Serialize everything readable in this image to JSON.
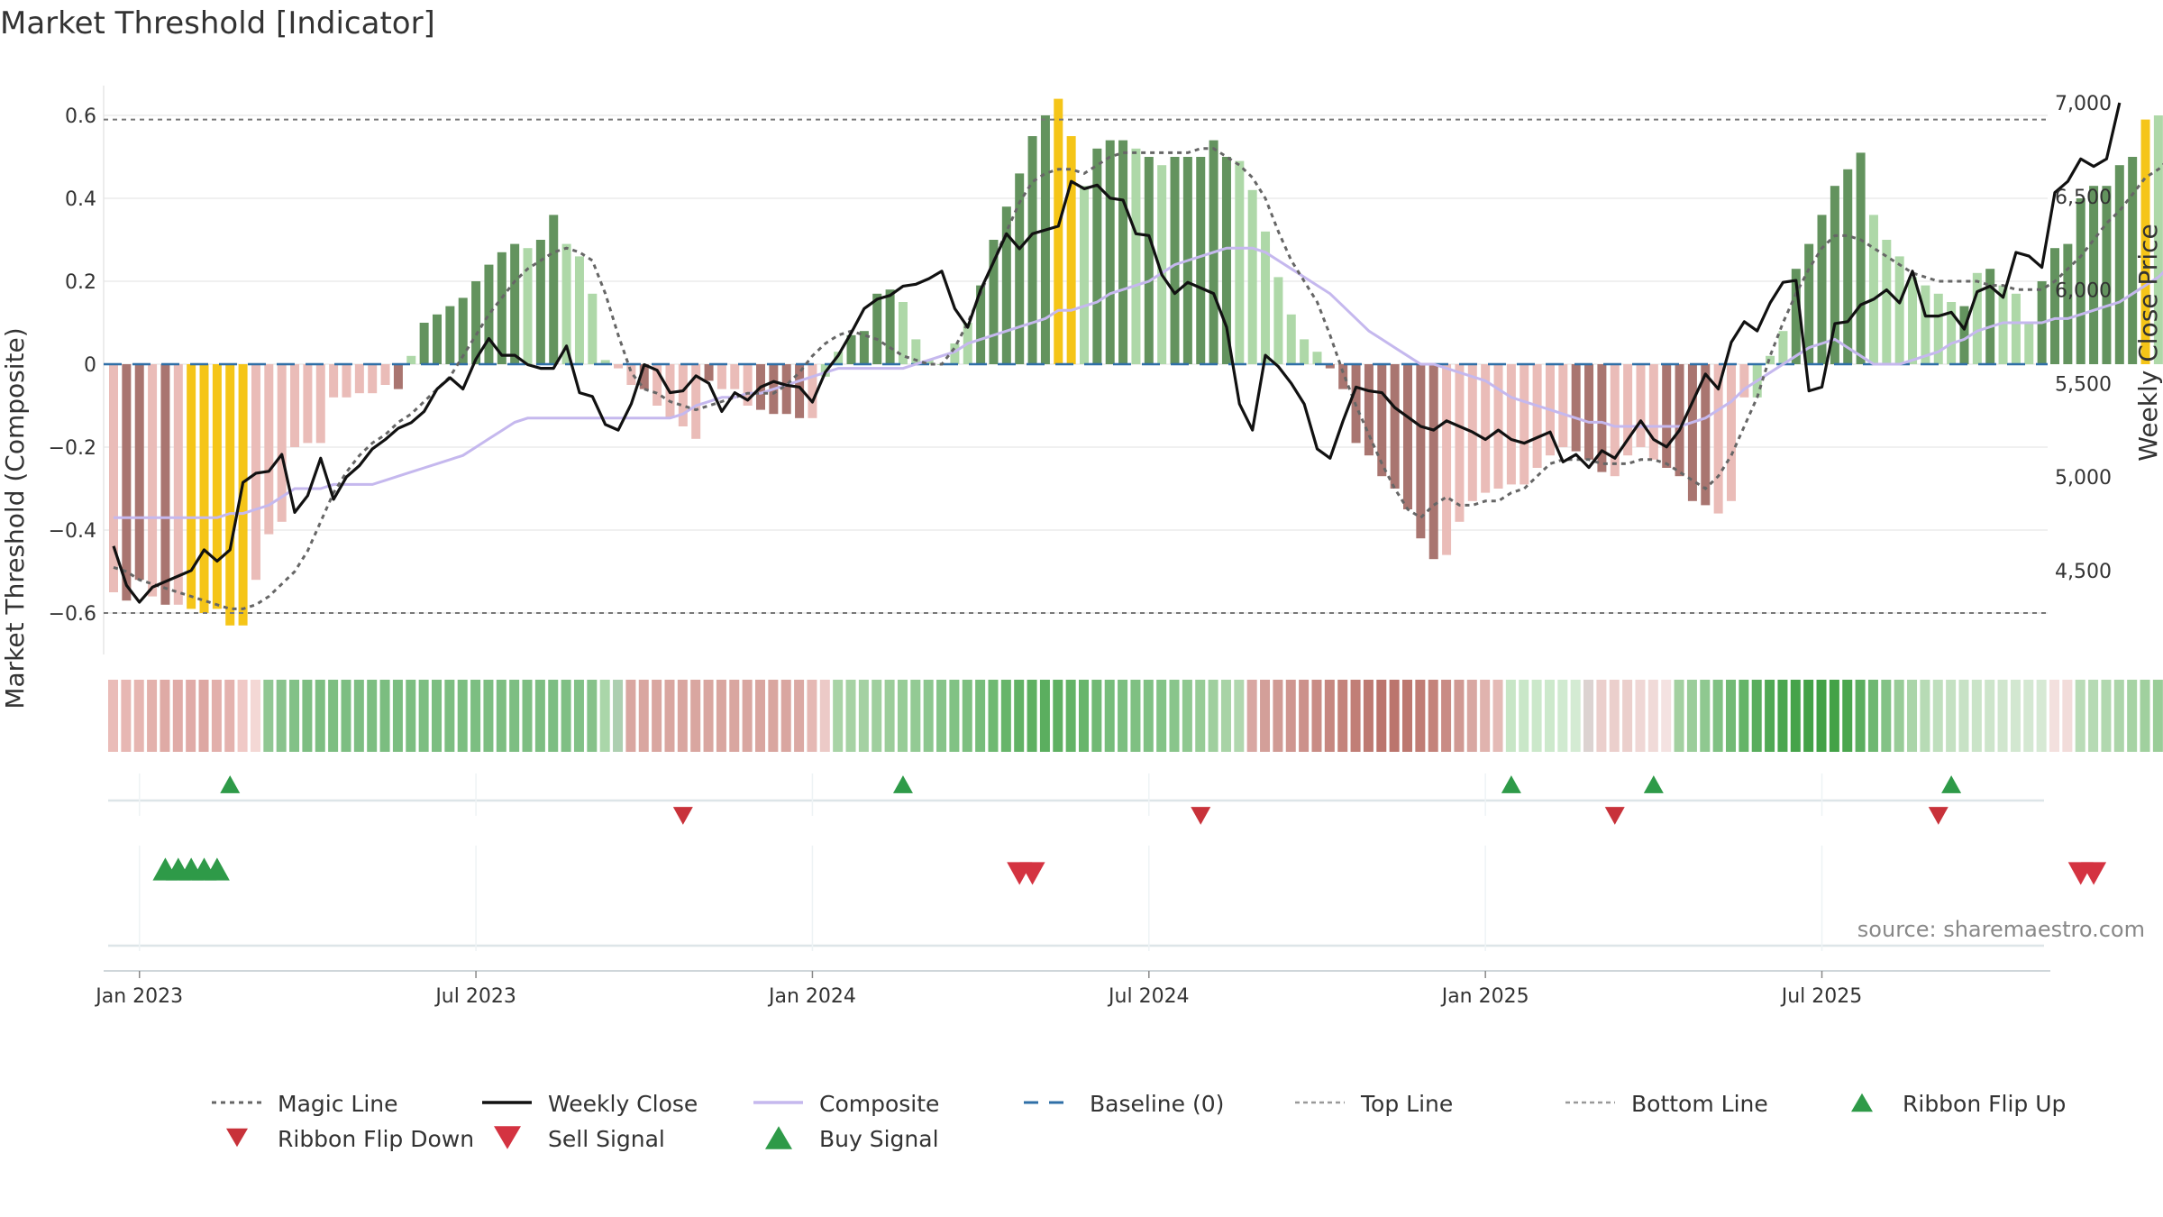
{
  "chart_data": {
    "type": "bar",
    "title": "Market Threshold [Indicator]",
    "ylabel": "Market Threshold (Composite)",
    "y2label": "Weekly Close Price",
    "ylim": [
      -0.7,
      0.7
    ],
    "y2lim": [
      4000,
      7100
    ],
    "yticks": [
      -0.6,
      -0.4,
      -0.2,
      0,
      0.2,
      0.4,
      0.6
    ],
    "yticklabels": [
      "−0.6",
      "−0.4",
      "−0.2",
      "0",
      "0.2",
      "0.4",
      "0.6"
    ],
    "y2ticks": [
      4500,
      5000,
      5500,
      6000,
      6500,
      7000
    ],
    "y2ticklabels": [
      "4,500",
      "5,000",
      "5,500",
      "6,000",
      "6,500",
      "7,000"
    ],
    "xticks": [
      {
        "week": 2,
        "label": "Jan 2023"
      },
      {
        "week": 28,
        "label": "Jul 2023"
      },
      {
        "week": 54,
        "label": "Jan 2024"
      },
      {
        "week": 80,
        "label": "Jul 2024"
      },
      {
        "week": 106,
        "label": "Jan 2025"
      },
      {
        "week": 132,
        "label": "Jul 2025"
      }
    ],
    "top_line": 0.59,
    "bottom_line": -0.6,
    "baseline": 0,
    "composite": [
      -0.55,
      -0.57,
      -0.52,
      -0.56,
      -0.58,
      -0.58,
      -0.59,
      -0.6,
      -0.59,
      -0.63,
      -0.63,
      -0.52,
      -0.41,
      -0.38,
      -0.2,
      -0.19,
      -0.19,
      -0.08,
      -0.08,
      -0.07,
      -0.07,
      -0.05,
      -0.06,
      0.02,
      0.1,
      0.12,
      0.14,
      0.16,
      0.2,
      0.24,
      0.27,
      0.29,
      0.28,
      0.3,
      0.36,
      0.29,
      0.26,
      0.17,
      0.01,
      -0.01,
      -0.05,
      -0.06,
      -0.1,
      -0.13,
      -0.15,
      -0.18,
      -0.04,
      -0.06,
      -0.06,
      -0.1,
      -0.11,
      -0.12,
      -0.12,
      -0.13,
      -0.13,
      -0.03,
      0.03,
      0.07,
      0.08,
      0.17,
      0.18,
      0.15,
      0.06,
      0.01,
      0.0,
      0.05,
      0.1,
      0.19,
      0.3,
      0.38,
      0.46,
      0.55,
      0.6,
      0.64,
      0.55,
      0.43,
      0.52,
      0.54,
      0.54,
      0.52,
      0.5,
      0.48,
      0.5,
      0.5,
      0.5,
      0.54,
      0.5,
      0.49,
      0.42,
      0.32,
      0.21,
      0.12,
      0.06,
      0.03,
      -0.01,
      -0.06,
      -0.19,
      -0.22,
      -0.27,
      -0.3,
      -0.35,
      -0.42,
      -0.47,
      -0.46,
      -0.38,
      -0.33,
      -0.31,
      -0.3,
      -0.29,
      -0.29,
      -0.25,
      -0.22,
      -0.2,
      -0.21,
      -0.23,
      -0.26,
      -0.27,
      -0.22,
      -0.2,
      -0.23,
      -0.25,
      -0.27,
      -0.33,
      -0.34,
      -0.36,
      -0.33,
      -0.08,
      -0.08,
      0.02,
      0.08,
      0.23,
      0.29,
      0.36,
      0.43,
      0.47,
      0.51,
      0.36,
      0.3,
      0.26,
      0.21,
      0.19,
      0.17,
      0.15,
      0.14,
      0.22,
      0.23,
      0.19,
      0.17,
      0.1,
      0.2,
      0.28,
      0.29,
      0.4,
      0.43,
      0.43,
      0.48,
      0.5,
      0.59,
      0.6,
      0.63,
      0.64
    ],
    "bar_colors": [
      "#eabcb8",
      "#a97570",
      "#a97570",
      "#eabcb8",
      "#a97570",
      "#eabcb8",
      "#f5c518",
      "#f5c518",
      "#f5c518",
      "#f5c518",
      "#f5c518",
      "#eabcb8",
      "#eabcb8",
      "#eabcb8",
      "#eabcb8",
      "#eabcb8",
      "#eabcb8",
      "#eabcb8",
      "#eabcb8",
      "#eabcb8",
      "#eabcb8",
      "#eabcb8",
      "#a97570",
      "#aed8a8",
      "#63935e",
      "#63935e",
      "#63935e",
      "#63935e",
      "#63935e",
      "#63935e",
      "#63935e",
      "#63935e",
      "#aed8a8",
      "#63935e",
      "#63935e",
      "#aed8a8",
      "#aed8a8",
      "#aed8a8",
      "#aed8a8",
      "#eabcb8",
      "#eabcb8",
      "#a97570",
      "#eabcb8",
      "#eabcb8",
      "#eabcb8",
      "#eabcb8",
      "#a97570",
      "#eabcb8",
      "#eabcb8",
      "#eabcb8",
      "#a97570",
      "#a97570",
      "#a97570",
      "#a97570",
      "#eabcb8",
      "#aed8a8",
      "#aed8a8",
      "#63935e",
      "#63935e",
      "#63935e",
      "#63935e",
      "#aed8a8",
      "#aed8a8",
      "#aed8a8",
      "#aed8a8",
      "#aed8a8",
      "#aed8a8",
      "#63935e",
      "#63935e",
      "#63935e",
      "#63935e",
      "#63935e",
      "#63935e",
      "#f5c518",
      "#f5c518",
      "#aed8a8",
      "#63935e",
      "#63935e",
      "#63935e",
      "#aed8a8",
      "#63935e",
      "#aed8a8",
      "#63935e",
      "#63935e",
      "#63935e",
      "#63935e",
      "#63935e",
      "#aed8a8",
      "#aed8a8",
      "#aed8a8",
      "#aed8a8",
      "#aed8a8",
      "#aed8a8",
      "#aed8a8",
      "#a97570",
      "#a97570",
      "#a97570",
      "#a97570",
      "#a97570",
      "#a97570",
      "#a97570",
      "#a97570",
      "#a97570",
      "#eabcb8",
      "#eabcb8",
      "#eabcb8",
      "#eabcb8",
      "#eabcb8",
      "#eabcb8",
      "#eabcb8",
      "#eabcb8",
      "#eabcb8",
      "#eabcb8",
      "#a97570",
      "#a97570",
      "#a97570",
      "#eabcb8",
      "#eabcb8",
      "#eabcb8",
      "#eabcb8",
      "#a97570",
      "#a97570",
      "#a97570",
      "#a97570",
      "#eabcb8",
      "#eabcb8",
      "#eabcb8",
      "#aed8a8",
      "#aed8a8",
      "#aed8a8",
      "#63935e",
      "#63935e",
      "#63935e",
      "#63935e",
      "#63935e",
      "#63935e",
      "#aed8a8",
      "#aed8a8",
      "#aed8a8",
      "#aed8a8",
      "#aed8a8",
      "#aed8a8",
      "#aed8a8",
      "#63935e",
      "#aed8a8",
      "#63935e",
      "#aed8a8",
      "#aed8a8",
      "#aed8a8",
      "#63935e",
      "#63935e",
      "#63935e",
      "#63935e",
      "#63935e",
      "#63935e",
      "#63935e",
      "#63935e",
      "#f5c518",
      "#aed8a8",
      "#63935e",
      "#f5c518"
    ],
    "composite_smooth": [
      -0.37,
      -0.37,
      -0.37,
      -0.37,
      -0.37,
      -0.37,
      -0.37,
      -0.37,
      -0.37,
      -0.36,
      -0.36,
      -0.35,
      -0.34,
      -0.32,
      -0.3,
      -0.3,
      -0.3,
      -0.29,
      -0.29,
      -0.29,
      -0.29,
      -0.28,
      -0.27,
      -0.26,
      -0.25,
      -0.24,
      -0.23,
      -0.22,
      -0.2,
      -0.18,
      -0.16,
      -0.14,
      -0.13,
      -0.13,
      -0.13,
      -0.13,
      -0.13,
      -0.13,
      -0.13,
      -0.13,
      -0.13,
      -0.13,
      -0.13,
      -0.13,
      -0.12,
      -0.1,
      -0.09,
      -0.08,
      -0.08,
      -0.07,
      -0.07,
      -0.06,
      -0.05,
      -0.04,
      -0.03,
      -0.02,
      -0.01,
      -0.01,
      -0.01,
      -0.01,
      -0.01,
      -0.01,
      0.0,
      0.01,
      0.02,
      0.03,
      0.05,
      0.06,
      0.07,
      0.08,
      0.09,
      0.1,
      0.11,
      0.13,
      0.13,
      0.14,
      0.15,
      0.17,
      0.18,
      0.19,
      0.2,
      0.22,
      0.24,
      0.25,
      0.26,
      0.27,
      0.28,
      0.28,
      0.28,
      0.27,
      0.25,
      0.23,
      0.21,
      0.19,
      0.17,
      0.14,
      0.11,
      0.08,
      0.06,
      0.04,
      0.02,
      0.0,
      0.0,
      -0.01,
      -0.02,
      -0.03,
      -0.04,
      -0.06,
      -0.08,
      -0.09,
      -0.1,
      -0.11,
      -0.12,
      -0.13,
      -0.14,
      -0.14,
      -0.15,
      -0.15,
      -0.15,
      -0.15,
      -0.15,
      -0.15,
      -0.14,
      -0.13,
      -0.11,
      -0.09,
      -0.06,
      -0.04,
      -0.02,
      0.0,
      0.02,
      0.04,
      0.05,
      0.06,
      0.04,
      0.02,
      0.0,
      0.0,
      0.0,
      0.01,
      0.02,
      0.03,
      0.05,
      0.06,
      0.08,
      0.09,
      0.1,
      0.1,
      0.1,
      0.1,
      0.11,
      0.11,
      0.12,
      0.13,
      0.14,
      0.15,
      0.17,
      0.19,
      0.21,
      0.24,
      0.27,
      0.28,
      0.32
    ],
    "magic_line": [
      -0.49,
      -0.5,
      -0.52,
      -0.53,
      -0.54,
      -0.55,
      -0.56,
      -0.57,
      -0.58,
      -0.59,
      -0.59,
      -0.58,
      -0.56,
      -0.53,
      -0.5,
      -0.45,
      -0.38,
      -0.31,
      -0.26,
      -0.22,
      -0.19,
      -0.17,
      -0.14,
      -0.12,
      -0.09,
      -0.06,
      -0.03,
      0.02,
      0.07,
      0.12,
      0.16,
      0.2,
      0.23,
      0.25,
      0.27,
      0.28,
      0.27,
      0.25,
      0.17,
      0.07,
      -0.02,
      -0.06,
      -0.07,
      -0.09,
      -0.1,
      -0.11,
      -0.1,
      -0.09,
      -0.08,
      -0.07,
      -0.07,
      -0.07,
      -0.05,
      -0.02,
      0.02,
      0.05,
      0.07,
      0.08,
      0.07,
      0.06,
      0.04,
      0.02,
      0.01,
      0.0,
      0.0,
      0.04,
      0.1,
      0.17,
      0.25,
      0.32,
      0.39,
      0.44,
      0.46,
      0.47,
      0.47,
      0.46,
      0.48,
      0.5,
      0.51,
      0.51,
      0.51,
      0.51,
      0.51,
      0.51,
      0.52,
      0.52,
      0.5,
      0.48,
      0.45,
      0.4,
      0.32,
      0.25,
      0.2,
      0.15,
      0.07,
      -0.02,
      -0.1,
      -0.17,
      -0.24,
      -0.3,
      -0.35,
      -0.37,
      -0.34,
      -0.32,
      -0.34,
      -0.34,
      -0.33,
      -0.33,
      -0.31,
      -0.3,
      -0.27,
      -0.24,
      -0.23,
      -0.23,
      -0.23,
      -0.24,
      -0.24,
      -0.24,
      -0.23,
      -0.23,
      -0.24,
      -0.26,
      -0.28,
      -0.3,
      -0.27,
      -0.22,
      -0.15,
      -0.08,
      0.02,
      0.1,
      0.17,
      0.23,
      0.28,
      0.31,
      0.31,
      0.3,
      0.28,
      0.26,
      0.24,
      0.22,
      0.21,
      0.2,
      0.2,
      0.2,
      0.2,
      0.19,
      0.19,
      0.18,
      0.18,
      0.18,
      0.2,
      0.23,
      0.26,
      0.3,
      0.34,
      0.37,
      0.41,
      0.45,
      0.47,
      0.5
    ],
    "weekly_close": [
      4630,
      4420,
      4330,
      4410,
      4440,
      4470,
      4500,
      4610,
      4550,
      4610,
      4970,
      5020,
      5030,
      5120,
      4810,
      4900,
      5100,
      4880,
      5000,
      5060,
      5150,
      5200,
      5260,
      5290,
      5350,
      5470,
      5530,
      5470,
      5630,
      5740,
      5650,
      5650,
      5600,
      5580,
      5580,
      5700,
      5450,
      5430,
      5280,
      5250,
      5390,
      5600,
      5570,
      5450,
      5460,
      5540,
      5500,
      5350,
      5450,
      5410,
      5480,
      5510,
      5490,
      5480,
      5400,
      5560,
      5650,
      5770,
      5900,
      5950,
      5970,
      6020,
      6030,
      6060,
      6100,
      5900,
      5800,
      6000,
      6150,
      6300,
      6220,
      6300,
      6320,
      6340,
      6580,
      6540,
      6560,
      6490,
      6480,
      6300,
      6290,
      6080,
      5980,
      6040,
      6010,
      5980,
      5800,
      5390,
      5250,
      5650,
      5590,
      5500,
      5390,
      5150,
      5100,
      5300,
      5480,
      5460,
      5450,
      5370,
      5320,
      5270,
      5250,
      5300,
      5270,
      5240,
      5200,
      5250,
      5200,
      5180,
      5210,
      5240,
      5080,
      5120,
      5050,
      5140,
      5100,
      5200,
      5300,
      5200,
      5160,
      5250,
      5400,
      5550,
      5470,
      5720,
      5830,
      5780,
      5930,
      6040,
      6050,
      5460,
      5480,
      5820,
      5830,
      5920,
      5950,
      6000,
      5930,
      6100,
      5860,
      5860,
      5880,
      5790,
      5990,
      6020,
      5960,
      6200,
      6180,
      6120,
      6520,
      6580,
      6700,
      6660,
      6700,
      7000
    ]
  },
  "ribbon": {
    "colors": [
      "#eabcb8",
      "#e7b7b3",
      "#e6b5b1",
      "#e3b1ac",
      "#dfaaa5",
      "#e0aba7",
      "#e0aba7",
      "#dda7a2",
      "#e2afab",
      "#e4b2ae",
      "#f0c9c6",
      "#f4d8d5",
      "#90c793",
      "#89c38d",
      "#82c187",
      "#7dbe82",
      "#7dbe82",
      "#7dbe82",
      "#7dbe82",
      "#7dbe82",
      "#7cbe81",
      "#7bbd80",
      "#7bbd80",
      "#7cbe81",
      "#7cbe81",
      "#7cbe81",
      "#7cbe81",
      "#7cbe81",
      "#7cbe81",
      "#7cbe81",
      "#7dbe82",
      "#7dbe82",
      "#7dbe82",
      "#7dbe82",
      "#7dbe82",
      "#7fbf84",
      "#82c187",
      "#86c28a",
      "#aad6a9",
      "#adcfb0",
      "#d9a6a0",
      "#d9a6a0",
      "#d9a6a0",
      "#d9a6a0",
      "#d9a6a0",
      "#d9a6a0",
      "#d9a6a0",
      "#d9a6a0",
      "#d9a6a0",
      "#d9a6a0",
      "#d9a6a0",
      "#d9a6a0",
      "#d9a6a0",
      "#dba9a4",
      "#e5b8b4",
      "#eccac7",
      "#a8d3a6",
      "#a6d2a4",
      "#a4d1a2",
      "#9fcf9e",
      "#9bcd9a",
      "#97cc97",
      "#93ca94",
      "#8dc78f",
      "#87c48a",
      "#81c284",
      "#7cbf80",
      "#77bd7b",
      "#6fb972",
      "#67b56a",
      "#62b266",
      "#5eb062",
      "#5bae5f",
      "#5eb062",
      "#63b366",
      "#68b56b",
      "#70b974",
      "#77bd7b",
      "#7cbf80",
      "#7fc082",
      "#80c184",
      "#84c387",
      "#89c58b",
      "#8fc890",
      "#97cc96",
      "#9fcf9e",
      "#a8d3a6",
      "#b0d7ae",
      "#d8a7a2",
      "#d39f99",
      "#d09a94",
      "#cf9690",
      "#cc918b",
      "#c98c85",
      "#c68780",
      "#c4837b",
      "#c17e76",
      "#be7a72",
      "#bb756d",
      "#bb756d",
      "#bd7870",
      "#c07d75",
      "#c4837b",
      "#c98c85",
      "#d09993",
      "#d8a7a2",
      "#e0b3ae",
      "#e4bab6",
      "#c7e6c6",
      "#c9e7c8",
      "#cbe8ca",
      "#cde9cc",
      "#d0ead0",
      "#d4ebd3",
      "#dcd3d1",
      "#ebcfcc",
      "#ebcfcc",
      "#ebcfcc",
      "#efd7d5",
      "#f0dad8",
      "#f4e2e1",
      "#a2d0a0",
      "#9bcd9a",
      "#8fc890",
      "#80c183",
      "#72ba75",
      "#64b467",
      "#59ad5d",
      "#50a954",
      "#4aa64e",
      "#45a34a",
      "#43a247",
      "#42a146",
      "#43a247",
      "#4aa64e",
      "#5bae5f",
      "#6eb871",
      "#83c286",
      "#98cc98",
      "#aad5a9",
      "#b7dbb5",
      "#bfdfbd",
      "#c4e1c2",
      "#c7e2c5",
      "#cae4c8",
      "#cde5cb",
      "#d0e6ce",
      "#d2e7d0",
      "#d4e8d2",
      "#d6e9d4",
      "#f3e0de",
      "#f2dcda",
      "#b9dcb7",
      "#b6dab4",
      "#b1d8af",
      "#acd5aa",
      "#a6d3a4",
      "#a0d09e",
      "#9acd98",
      "#94ca92",
      "#8ec88d",
      "#88c587",
      "#82c281",
      "#7dbf7c",
      "#78bd77",
      "#73ba73",
      "#6fb86f",
      "#6bb76b"
    ]
  },
  "markers": {
    "ribbon_flip_up": [
      9,
      61,
      108,
      119,
      142
    ],
    "ribbon_flip_down": [
      44,
      84,
      116,
      141
    ],
    "buy_signal": [
      4,
      5,
      6,
      7,
      8
    ],
    "sell_signal": [
      70,
      71,
      152,
      153
    ]
  },
  "source_text": "source: sharemaestro.com",
  "legend": [
    {
      "key": "magic",
      "label": "Magic Line"
    },
    {
      "key": "close",
      "label": "Weekly Close"
    },
    {
      "key": "composite",
      "label": "Composite"
    },
    {
      "key": "baseline",
      "label": "Baseline (0)"
    },
    {
      "key": "top",
      "label": "Top Line"
    },
    {
      "key": "bottom",
      "label": "Bottom Line"
    },
    {
      "key": "flipup",
      "label": "Ribbon Flip Up"
    },
    {
      "key": "flipdown",
      "label": "Ribbon Flip Down"
    },
    {
      "key": "sell",
      "label": "Sell Signal"
    },
    {
      "key": "buy",
      "label": "Buy Signal"
    }
  ],
  "colors": {
    "bright_green": "#63935e",
    "light_green": "#aed8a8",
    "dark_red": "#a97570",
    "light_red": "#eabcb8",
    "yellow": "#f5c518",
    "composite_line": "#c5b8ee",
    "magic_line": "#666666",
    "weekly_close": "#111111",
    "baseline": "#2f6fa7",
    "up_marker": "#2e9a48",
    "down_marker": "#d43341"
  }
}
